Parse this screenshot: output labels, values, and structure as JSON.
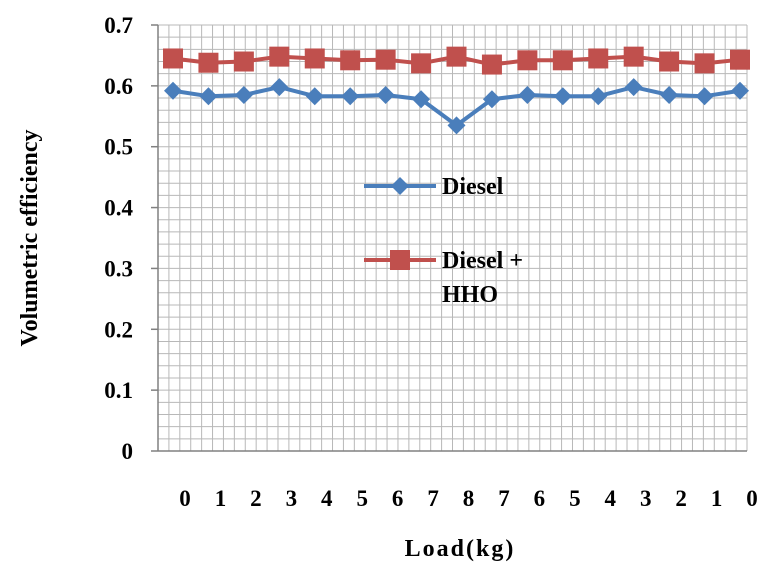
{
  "chart_data": {
    "type": "line",
    "title": "",
    "xlabel": "Load(kg)",
    "ylabel": "Volumetric efficiency",
    "ylim": [
      0,
      0.7
    ],
    "yticks": [
      "0",
      "0.1",
      "0.2",
      "0.3",
      "0.4",
      "0.5",
      "0.6",
      "0.7"
    ],
    "categories": [
      "0",
      "1",
      "2",
      "3",
      "4",
      "5",
      "6",
      "7",
      "8",
      "7",
      "6",
      "5",
      "4",
      "3",
      "2",
      "1",
      "0"
    ],
    "grid": true,
    "legend_position": "center",
    "series": [
      {
        "name": "Diesel",
        "color": "#4a7ebb",
        "marker": "diamond",
        "values": [
          0.592,
          0.583,
          0.585,
          0.598,
          0.583,
          0.583,
          0.585,
          0.578,
          0.535,
          0.578,
          0.585,
          0.583,
          0.583,
          0.598,
          0.585,
          0.583,
          0.592
        ]
      },
      {
        "name_lines": [
          "Diesel +",
          "HHO"
        ],
        "color": "#c0504d",
        "marker": "square",
        "values": [
          0.645,
          0.638,
          0.64,
          0.648,
          0.645,
          0.642,
          0.643,
          0.637,
          0.648,
          0.635,
          0.642,
          0.642,
          0.645,
          0.648,
          0.64,
          0.637,
          0.643
        ]
      }
    ]
  }
}
